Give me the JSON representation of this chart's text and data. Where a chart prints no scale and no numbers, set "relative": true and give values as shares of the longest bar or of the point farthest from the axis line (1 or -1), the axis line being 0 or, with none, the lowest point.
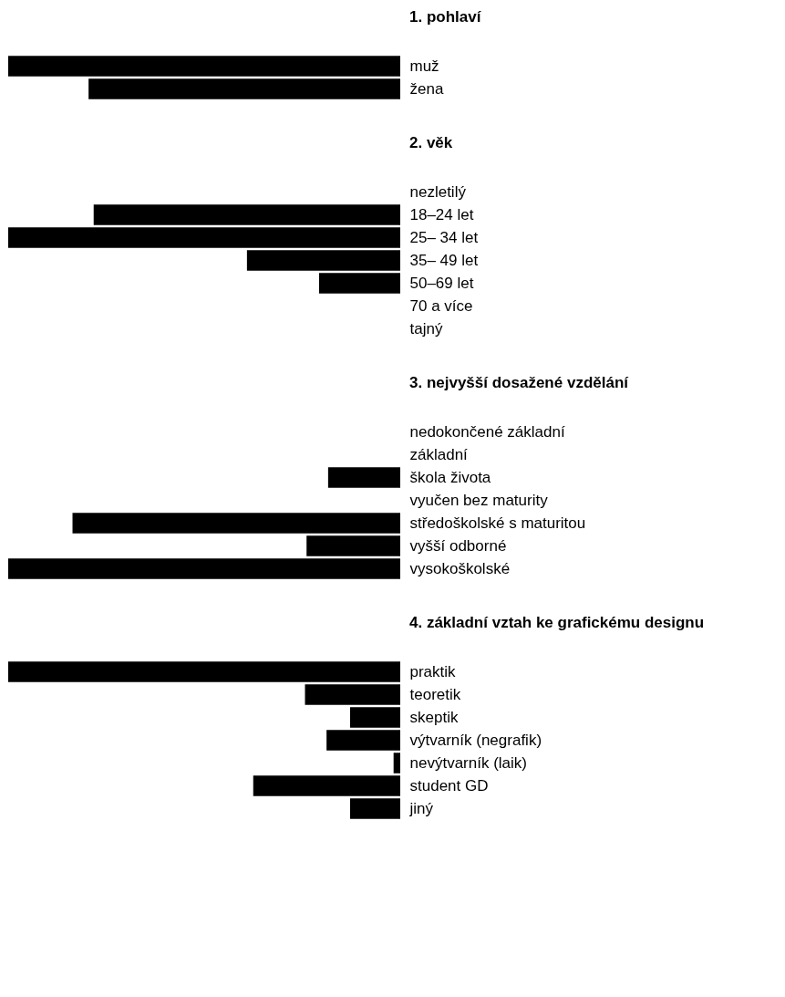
{
  "chart_data": [
    {
      "type": "bar",
      "orientation": "horizontal",
      "relative": true,
      "title": "1. pohlaví",
      "categories": [
        "muž",
        "žena"
      ],
      "values": [
        1,
        0.795
      ],
      "color": "#000000"
    },
    {
      "type": "bar",
      "orientation": "horizontal",
      "relative": true,
      "title": "2. věk",
      "categories": [
        "nezletilý",
        "18–24 let",
        "25– 34 let",
        "35– 49 let",
        "50–69 let",
        "70 a více",
        "tajný"
      ],
      "values": [
        0,
        0.782,
        1,
        0.391,
        0.207,
        0,
        0
      ],
      "color": "#000000"
    },
    {
      "type": "bar",
      "orientation": "horizontal",
      "relative": true,
      "title": "3. nejvyšší dosažené vzdělání",
      "categories": [
        "nedokončené základní",
        "základní",
        "škola života",
        "vyučen bez maturity",
        "středoškolské s maturitou",
        "vyšší odborné",
        "vysokoškolské"
      ],
      "values": [
        0,
        0,
        0.184,
        0,
        0.836,
        0.239,
        1
      ],
      "color": "#000000"
    },
    {
      "type": "bar",
      "orientation": "horizontal",
      "relative": true,
      "title": "4. základní vztah ke grafickému designu",
      "categories": [
        "praktik",
        "teoretik",
        "skeptik",
        "výtvarník (negrafik)",
        "nevýtvarník (laik)",
        "student GD",
        "jiný"
      ],
      "values": [
        1,
        0.243,
        0.128,
        0.188,
        0.017,
        0.375,
        0.128
      ],
      "color": "#000000"
    }
  ]
}
